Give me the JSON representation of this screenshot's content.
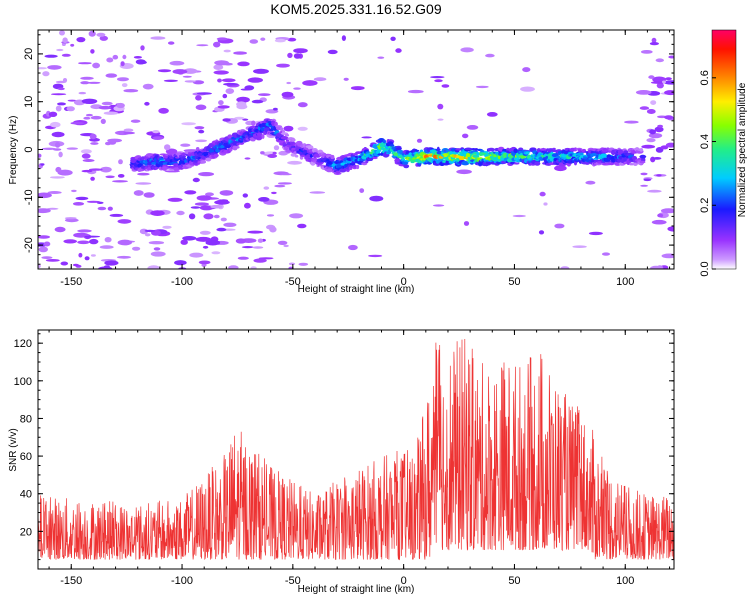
{
  "chart_data": [
    {
      "type": "heatmap",
      "title": "KOM5.2025.331.16.52.G09",
      "xlabel": "Height of straight line (km)",
      "ylabel": "Frequency (Hz)",
      "xlim": [
        -165,
        122
      ],
      "ylim": [
        -25,
        25
      ],
      "xticks": [
        -150,
        -100,
        -50,
        0,
        50,
        100
      ],
      "yticks": [
        -20,
        -10,
        0,
        10,
        20
      ],
      "colorbar": {
        "label": "Normalized spectral amplitude",
        "range": [
          0.0,
          0.75
        ],
        "ticks": [
          "0.0",
          "0.2",
          "0.4",
          "0.6"
        ]
      },
      "ridge": {
        "x": [
          -122,
          -110,
          -100,
          -90,
          -80,
          -70,
          -60,
          -52,
          -45,
          -38,
          -30,
          -20,
          -10,
          -5,
          0,
          10,
          20,
          30,
          40,
          50,
          60,
          70,
          80,
          90,
          100,
          108
        ],
        "y": [
          -3,
          -2.5,
          -2.5,
          -1,
          1,
          3,
          5,
          1,
          -0.5,
          -2,
          -3.5,
          -2,
          0.5,
          0,
          -2,
          -1.5,
          -1.5,
          -1.5,
          -1.5,
          -1.5,
          -1.5,
          -1.5,
          -1.5,
          -1.5,
          -1.5,
          -1.5
        ],
        "amp": [
          0.22,
          0.28,
          0.25,
          0.22,
          0.3,
          0.22,
          0.3,
          0.15,
          0.2,
          0.18,
          0.3,
          0.3,
          0.55,
          0.4,
          0.45,
          0.62,
          0.55,
          0.6,
          0.5,
          0.45,
          0.42,
          0.38,
          0.35,
          0.3,
          0.25,
          0.15
        ]
      }
    },
    {
      "type": "line",
      "xlabel": "Height of straight line (km)",
      "ylabel": "SNR (v/v)",
      "xlim": [
        -165,
        122
      ],
      "ylim": [
        0,
        127
      ],
      "xticks": [
        -150,
        -100,
        -50,
        0,
        50,
        100
      ],
      "yticks": [
        20,
        40,
        60,
        80,
        100,
        120
      ],
      "color": "#ee3333",
      "envelope": {
        "x": [
          -165,
          -150,
          -120,
          -100,
          -80,
          -76,
          -60,
          -40,
          -20,
          -10,
          0,
          5,
          10,
          15,
          20,
          27,
          35,
          45,
          55,
          62,
          70,
          75,
          80,
          85,
          90,
          100,
          110,
          122
        ],
        "y": [
          40,
          38,
          35,
          38,
          62,
          78,
          55,
          40,
          55,
          60,
          65,
          62,
          90,
          125,
          120,
          125,
          110,
          115,
          110,
          120,
          100,
          90,
          85,
          75,
          60,
          45,
          40,
          40
        ]
      }
    }
  ]
}
